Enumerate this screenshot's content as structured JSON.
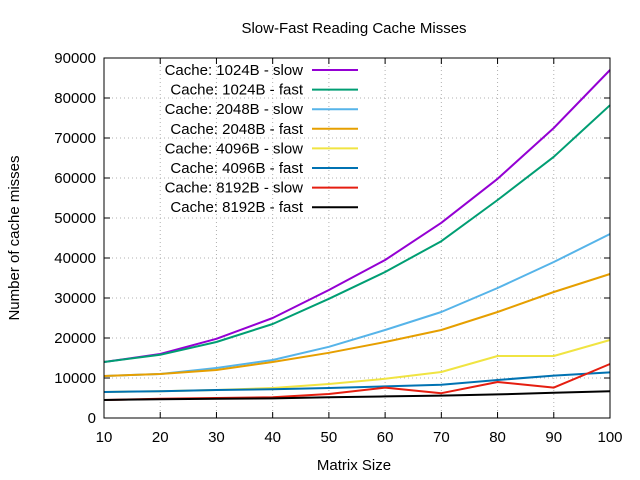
{
  "chart_data": {
    "type": "line",
    "title": "Slow-Fast Reading Cache Misses",
    "xlabel": "Matrix Size",
    "ylabel": "Number of cache misses",
    "xlim": [
      10,
      100
    ],
    "ylim": [
      0,
      90000
    ],
    "x_ticks": [
      "10",
      "20",
      "30",
      "40",
      "50",
      "60",
      "70",
      "80",
      "90",
      "100"
    ],
    "y_ticks": [
      "0",
      "10000",
      "20000",
      "30000",
      "40000",
      "50000",
      "60000",
      "70000",
      "80000",
      "90000"
    ],
    "grid": true,
    "legend_position": "top-left",
    "x": [
      10,
      20,
      30,
      40,
      50,
      60,
      70,
      80,
      90,
      100
    ],
    "series": [
      {
        "name": "Cache: 1024B - slow",
        "color": "#9400d3",
        "values": [
          14000,
          16000,
          19800,
          25000,
          32000,
          39500,
          48800,
          59800,
          72500,
          87000
        ]
      },
      {
        "name": "Cache: 1024B - fast",
        "color": "#009e73",
        "values": [
          14000,
          15800,
          19000,
          23500,
          29800,
          36500,
          44200,
          54500,
          65300,
          78200
        ]
      },
      {
        "name": "Cache: 2048B - slow",
        "color": "#56b4e9",
        "values": [
          10500,
          11000,
          12500,
          14500,
          17800,
          22000,
          26500,
          32500,
          39000,
          46000
        ]
      },
      {
        "name": "Cache: 2048B - fast",
        "color": "#e69f00",
        "values": [
          10500,
          11000,
          12000,
          14000,
          16300,
          19000,
          22000,
          26500,
          31500,
          36000
        ]
      },
      {
        "name": "Cache: 4096B - slow",
        "color": "#f0e442",
        "values": [
          6500,
          6700,
          7000,
          7500,
          8500,
          9800,
          11500,
          15500,
          15500,
          19500
        ]
      },
      {
        "name": "Cache: 4096B - fast",
        "color": "#0072b2",
        "values": [
          6500,
          6700,
          7000,
          7200,
          7500,
          7900,
          8300,
          9500,
          10600,
          11400
        ]
      },
      {
        "name": "Cache: 8192B - slow",
        "color": "#e51e10",
        "values": [
          4500,
          4800,
          5000,
          5200,
          6000,
          7600,
          6200,
          9000,
          7600,
          13500
        ]
      },
      {
        "name": "Cache: 8192B - fast",
        "color": "#000000",
        "values": [
          4500,
          4700,
          4800,
          4900,
          5200,
          5400,
          5600,
          5900,
          6300,
          6700
        ]
      }
    ]
  }
}
